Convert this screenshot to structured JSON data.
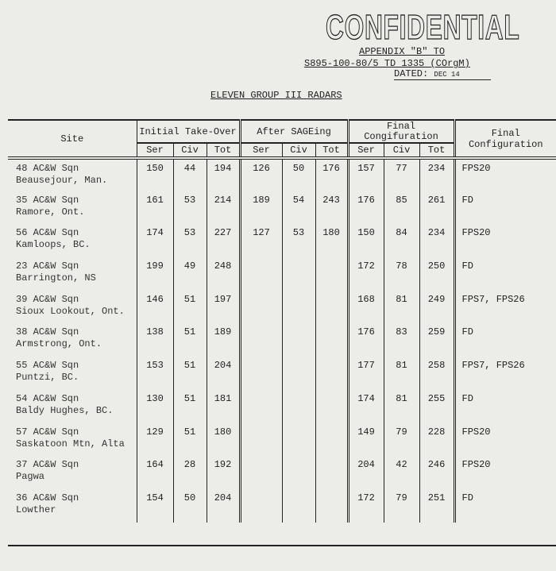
{
  "stamp": "CONFIDENTIAL",
  "reference": {
    "appendix": "APPENDIX \"B\" TO",
    "file": "S895-100-80/5 TD 1335 (COrgM)",
    "dated_label": "DATED:",
    "dated_value": "DEC 14"
  },
  "title": "ELEVEN GROUP III RADARS",
  "headers": {
    "site": "Site",
    "initial": "Initial Take-Over",
    "after": "After SAGEing",
    "final_group": "Final Congifuration",
    "final_config": "Final Configuration",
    "ser": "Ser",
    "civ": "Civ",
    "tot": "Tot"
  },
  "rows": [
    {
      "sqn": "48 AC&W Sqn",
      "loc": "Beausejour, Man.",
      "v": [
        "150",
        "44",
        "194",
        "126",
        "50",
        "176",
        "157",
        "77",
        "234"
      ],
      "cfg": "FPS20"
    },
    {
      "sqn": "35 AC&W Sqn",
      "loc": "Ramore, Ont.",
      "v": [
        "161",
        "53",
        "214",
        "189",
        "54",
        "243",
        "176",
        "85",
        "261"
      ],
      "cfg": "FD"
    },
    {
      "sqn": "56 AC&W Sqn",
      "loc": "Kamloops, BC.",
      "v": [
        "174",
        "53",
        "227",
        "127",
        "53",
        "180",
        "150",
        "84",
        "234"
      ],
      "cfg": "FPS20"
    },
    {
      "sqn": "23 AC&W Sqn",
      "loc": "Barrington, NS",
      "v": [
        "199",
        "49",
        "248",
        "",
        "",
        "",
        "172",
        "78",
        "250"
      ],
      "cfg": "FD"
    },
    {
      "sqn": "39 AC&W Sqn",
      "loc": "Sioux Lookout, Ont.",
      "v": [
        "146",
        "51",
        "197",
        "",
        "",
        "",
        "168",
        "81",
        "249"
      ],
      "cfg": "FPS7, FPS26"
    },
    {
      "sqn": "38 AC&W Sqn",
      "loc": "Armstrong, Ont.",
      "v": [
        "138",
        "51",
        "189",
        "",
        "",
        "",
        "176",
        "83",
        "259"
      ],
      "cfg": "FD"
    },
    {
      "sqn": "55 AC&W Sqn",
      "loc": "Puntzi, BC.",
      "v": [
        "153",
        "51",
        "204",
        "",
        "",
        "",
        "177",
        "81",
        "258"
      ],
      "cfg": "FPS7, FPS26"
    },
    {
      "sqn": "54 AC&W Sqn",
      "loc": "Baldy Hughes, BC.",
      "v": [
        "130",
        "51",
        "181",
        "",
        "",
        "",
        "174",
        "81",
        "255"
      ],
      "cfg": "FD"
    },
    {
      "sqn": "57 AC&W Sqn",
      "loc": "Saskatoon Mtn, Alta",
      "v": [
        "129",
        "51",
        "180",
        "",
        "",
        "",
        "149",
        "79",
        "228"
      ],
      "cfg": "FPS20"
    },
    {
      "sqn": "37 AC&W Sqn",
      "loc": "Pagwa",
      "v": [
        "164",
        "28",
        "192",
        "",
        "",
        "",
        "204",
        "42",
        "246"
      ],
      "cfg": "FPS20"
    },
    {
      "sqn": "36 AC&W Sqn",
      "loc": "Lowther",
      "v": [
        "154",
        "50",
        "204",
        "",
        "",
        "",
        "172",
        "79",
        "251"
      ],
      "cfg": "FD"
    }
  ]
}
